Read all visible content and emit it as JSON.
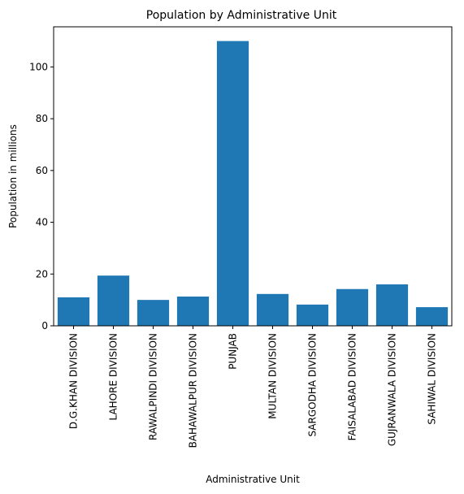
{
  "chart_data": {
    "type": "bar",
    "title": "Population by Administrative Unit",
    "xlabel": "Administrative Unit",
    "ylabel": "Population in millions",
    "categories": [
      "D.G.KHAN DIVISION",
      "LAHORE DIVISION",
      "RAWALPINDI DIVISION",
      "BAHAWALPUR DIVISION",
      "PUNJAB",
      "MULTAN DIVISION",
      "SARGODHA DIVISION",
      "FAISALABAD DIVISION",
      "GUJRANWALA DIVISION",
      "SAHIWAL DIVISION"
    ],
    "values": [
      11.0,
      19.4,
      10.0,
      11.3,
      110.0,
      12.3,
      8.2,
      14.2,
      16.0,
      7.2
    ],
    "ylim": [
      0,
      115.5
    ],
    "yticks": [
      0,
      20,
      40,
      60,
      80,
      100
    ],
    "bar_color": "#1f77b4",
    "grid": false,
    "legend": "none"
  }
}
